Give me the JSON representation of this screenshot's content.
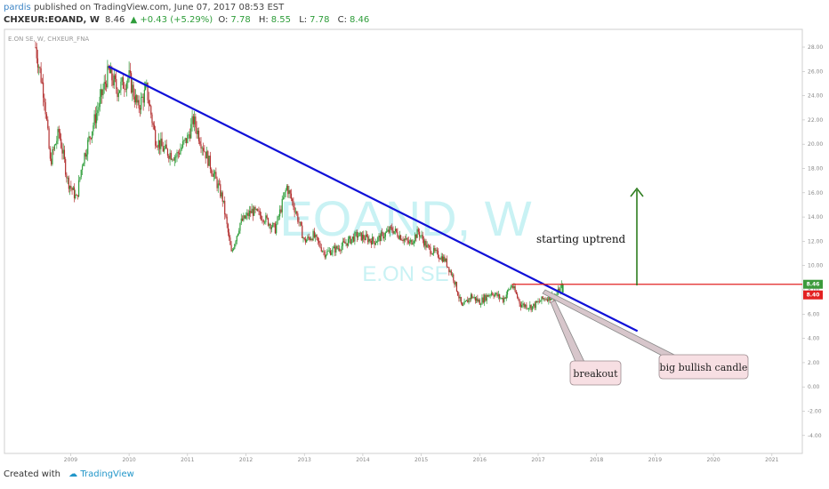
{
  "header": {
    "author": "pardis",
    "published_text": "published on TradingView.com, June 07, 2017 08:53 EST",
    "symbol": "CHXEUR:EOAND, W",
    "last": "8.46",
    "change": "▲ +0.43 (+5.29%)",
    "o_label": "O:",
    "o_val": "7.78",
    "h_label": "H:",
    "h_val": "8.55",
    "l_label": "L:",
    "l_val": "7.78",
    "c_label": "C:",
    "c_val": "8.46",
    "legend": "E.ON SE, W, CHXEUR_FNA"
  },
  "watermark": {
    "ticker": "EOAND, W",
    "name": "E.ON SE"
  },
  "footer": {
    "created": "Created with",
    "brand": "TradingView"
  },
  "colors": {
    "up": "#2e9d3a",
    "down": "#b33030",
    "trendline": "#1010d8",
    "hline": "#e32222",
    "arrow": "#2e7d1f",
    "note_fill": "#f7dfe3"
  },
  "chart_data": {
    "type": "candlestick",
    "title": "CHXEUR:EOAND, W",
    "x_ticks": [
      "2009",
      "2010",
      "2011",
      "2012",
      "2013",
      "2014",
      "2015",
      "2016",
      "2017",
      "2018",
      "2019",
      "2020",
      "2021"
    ],
    "y_ticks": [
      "28.00",
      "26.00",
      "24.00",
      "22.00",
      "20.00",
      "18.00",
      "16.00",
      "14.00",
      "12.00",
      "10.00",
      "8.00",
      "6.00",
      "4.00",
      "2.00",
      "0.00",
      "-2.00",
      "-4.00"
    ],
    "ylim": [
      -4.6,
      28.6
    ],
    "price_path": [
      {
        "x": 2008.4,
        "y": 28.0
      },
      {
        "x": 2008.55,
        "y": 24.0
      },
      {
        "x": 2008.65,
        "y": 18.5
      },
      {
        "x": 2008.8,
        "y": 21.0
      },
      {
        "x": 2008.95,
        "y": 17.0
      },
      {
        "x": 2009.1,
        "y": 15.5
      },
      {
        "x": 2009.2,
        "y": 18.5
      },
      {
        "x": 2009.35,
        "y": 21.0
      },
      {
        "x": 2009.5,
        "y": 23.5
      },
      {
        "x": 2009.65,
        "y": 26.0
      },
      {
        "x": 2009.8,
        "y": 24.5
      },
      {
        "x": 2010.0,
        "y": 25.5
      },
      {
        "x": 2010.15,
        "y": 23.0
      },
      {
        "x": 2010.3,
        "y": 24.5
      },
      {
        "x": 2010.45,
        "y": 20.5
      },
      {
        "x": 2010.6,
        "y": 19.5
      },
      {
        "x": 2010.8,
        "y": 19.0
      },
      {
        "x": 2011.0,
        "y": 20.5
      },
      {
        "x": 2011.1,
        "y": 22.0
      },
      {
        "x": 2011.25,
        "y": 20.0
      },
      {
        "x": 2011.45,
        "y": 17.5
      },
      {
        "x": 2011.6,
        "y": 15.5
      },
      {
        "x": 2011.75,
        "y": 11.0
      },
      {
        "x": 2011.9,
        "y": 13.5
      },
      {
        "x": 2012.1,
        "y": 14.5
      },
      {
        "x": 2012.3,
        "y": 14.0
      },
      {
        "x": 2012.5,
        "y": 13.0
      },
      {
        "x": 2012.7,
        "y": 16.5
      },
      {
        "x": 2012.85,
        "y": 14.5
      },
      {
        "x": 2013.0,
        "y": 12.0
      },
      {
        "x": 2013.15,
        "y": 12.5
      },
      {
        "x": 2013.35,
        "y": 11.0
      },
      {
        "x": 2013.6,
        "y": 11.5
      },
      {
        "x": 2013.9,
        "y": 12.5
      },
      {
        "x": 2014.2,
        "y": 12.0
      },
      {
        "x": 2014.5,
        "y": 13.0
      },
      {
        "x": 2014.8,
        "y": 11.8
      },
      {
        "x": 2014.95,
        "y": 12.8
      },
      {
        "x": 2015.1,
        "y": 11.5
      },
      {
        "x": 2015.25,
        "y": 11.0
      },
      {
        "x": 2015.4,
        "y": 10.5
      },
      {
        "x": 2015.55,
        "y": 9.0
      },
      {
        "x": 2015.7,
        "y": 6.5
      },
      {
        "x": 2015.85,
        "y": 7.5
      },
      {
        "x": 2016.0,
        "y": 7.0
      },
      {
        "x": 2016.2,
        "y": 7.8
      },
      {
        "x": 2016.4,
        "y": 7.2
      },
      {
        "x": 2016.55,
        "y": 8.4
      },
      {
        "x": 2016.7,
        "y": 6.8
      },
      {
        "x": 2016.9,
        "y": 6.6
      },
      {
        "x": 2017.1,
        "y": 7.3
      },
      {
        "x": 2017.3,
        "y": 7.5
      },
      {
        "x": 2017.42,
        "y": 8.46
      }
    ],
    "trendline": {
      "x1": 2009.65,
      "y1": 26.4,
      "x2": 2018.7,
      "y2": 4.6
    },
    "horizontal_line": {
      "x1": 2016.55,
      "x2": 2021.95,
      "y": 8.46
    },
    "price_labels": {
      "current": "8.46",
      "previous": "8.40"
    },
    "annotations": [
      {
        "text": "starting uptrend"
      },
      {
        "text": "breakout"
      },
      {
        "text": "big bullish candle"
      }
    ]
  }
}
